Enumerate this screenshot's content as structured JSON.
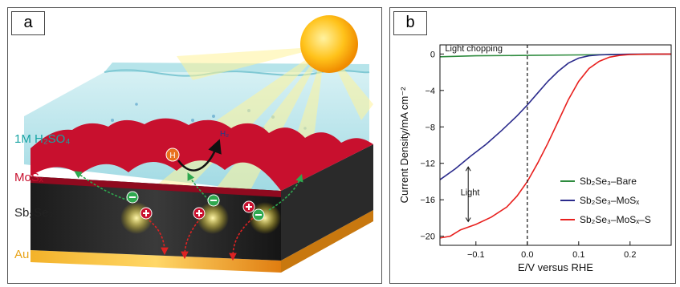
{
  "panel_a": {
    "tag": "a",
    "labels": {
      "electrolyte": "1M H₂SO₄",
      "catalyst": "MoSₓ",
      "absorber": "Sb₂Se₃",
      "contact": "Au",
      "h_atom": "H",
      "h2": "H₂"
    },
    "colors": {
      "electrolyte": "#17a3a3",
      "catalyst": "#c8102e",
      "absorber": "#222222",
      "contact": "#e8a317",
      "sun": "#f5a300"
    },
    "icons": [
      "sun-icon",
      "electron-icon",
      "hole-icon",
      "h-atom-icon"
    ]
  },
  "panel_b": {
    "tag": "b",
    "annotations": {
      "chopping": "Light chopping",
      "light": "Light"
    }
  },
  "chart_data": {
    "type": "line",
    "title": "",
    "xlabel": "E/V versus RHE",
    "ylabel": "Current Density/mA cm⁻²",
    "xlim": [
      -0.17,
      0.28
    ],
    "ylim": [
      -21,
      1
    ],
    "xticks": [
      -0.1,
      0.0,
      0.1,
      0.2
    ],
    "xtick_labels": [
      "−0.1",
      "0.0",
      "0.1",
      "0.2"
    ],
    "yticks": [
      0,
      -4,
      -8,
      -12,
      -16,
      -20
    ],
    "ytick_labels": [
      "0",
      "−4",
      "−8",
      "−12",
      "−16",
      "−20"
    ],
    "grid": false,
    "legend_position": "bottom-right",
    "series": [
      {
        "name": "Sb₂Se₃–Bare",
        "color": "#2e8b3e",
        "x": [
          -0.17,
          -0.1,
          0.0,
          0.1,
          0.2,
          0.28
        ],
        "y": [
          -0.3,
          -0.2,
          -0.15,
          -0.1,
          -0.05,
          0.0
        ]
      },
      {
        "name": "Sb₂Se₃–MoSₓ",
        "color": "#2b2b8c",
        "x": [
          -0.17,
          -0.14,
          -0.11,
          -0.08,
          -0.05,
          -0.02,
          0.0,
          0.02,
          0.04,
          0.06,
          0.08,
          0.1,
          0.12,
          0.14,
          0.17,
          0.2,
          0.24,
          0.28
        ],
        "y": [
          -13.8,
          -12.6,
          -11.2,
          -9.9,
          -8.4,
          -6.8,
          -5.6,
          -4.3,
          -3.0,
          -1.9,
          -1.0,
          -0.45,
          -0.2,
          -0.1,
          -0.05,
          -0.02,
          0.0,
          0.0
        ]
      },
      {
        "name": "Sb₂Se₃–MoSₓ–S",
        "color": "#e8201e",
        "x": [
          -0.17,
          -0.15,
          -0.13,
          -0.1,
          -0.07,
          -0.04,
          -0.02,
          0.0,
          0.02,
          0.04,
          0.06,
          0.08,
          0.1,
          0.12,
          0.14,
          0.16,
          0.18,
          0.2,
          0.23,
          0.26,
          0.28
        ],
        "y": [
          -20.2,
          -20.0,
          -19.3,
          -18.7,
          -17.9,
          -16.8,
          -15.6,
          -14.0,
          -12.0,
          -9.8,
          -7.4,
          -5.0,
          -3.0,
          -1.6,
          -0.8,
          -0.35,
          -0.15,
          -0.06,
          -0.02,
          0.0,
          0.0
        ]
      }
    ],
    "annotations": [
      {
        "text": "Light chopping",
        "x": -0.16,
        "y": 0.3
      },
      {
        "text": "Light",
        "x": -0.13,
        "y": -15.5
      }
    ],
    "vline_x": 0.0
  }
}
